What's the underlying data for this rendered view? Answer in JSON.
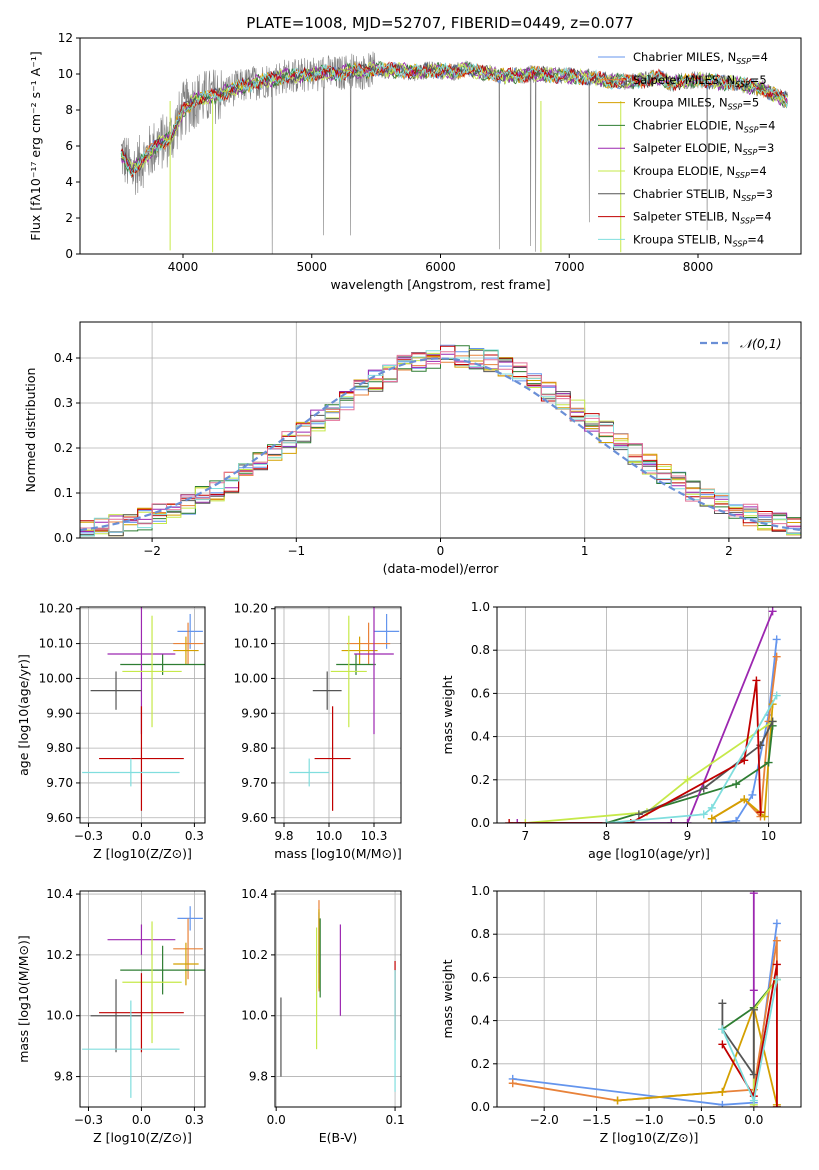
{
  "figure_title": "PLATE=1008, MJD=52707, FIBERID=0449, z=0.077",
  "colors": {
    "Chabrier MILES": "#6495ed",
    "Salpeter MILES": "#e8823a",
    "Kroupa MILES": "#d4a000",
    "Chabrier ELODIE": "#2e7d32",
    "Salpeter ELODIE": "#9c27b0",
    "Kroupa ELODIE": "#c6e94a",
    "Chabrier STELIB": "#555555",
    "Salpeter STELIB": "#c00000",
    "Kroupa STELIB": "#80dede",
    "gauss": "#6a8fd6",
    "data": "#808080"
  },
  "chart_data": [
    {
      "id": "spectrum",
      "type": "line",
      "title": "PLATE=1008, MJD=52707, FIBERID=0449, z=0.077",
      "xlabel": "wavelength [Angstrom, rest frame]",
      "ylabel": "Flux [fλ10⁻¹⁷ erg cm⁻² s⁻¹ A⁻¹]",
      "xlim": [
        3200,
        8800
      ],
      "ylim": [
        0,
        12
      ],
      "xticks": [
        4000,
        5000,
        6000,
        7000,
        8000
      ],
      "yticks": [
        0,
        2,
        4,
        6,
        8,
        10,
        12
      ],
      "legend_position": "right",
      "legend": [
        {
          "key": "Chabrier MILES",
          "name": "Chabrier MILES",
          "nssp": "4"
        },
        {
          "key": "Salpeter MILES",
          "name": "Salpeter MILES",
          "nssp": "5"
        },
        {
          "key": "Kroupa MILES",
          "name": "Kroupa MILES",
          "nssp": "5"
        },
        {
          "key": "Chabrier ELODIE",
          "name": "Chabrier ELODIE",
          "nssp": "4"
        },
        {
          "key": "Salpeter ELODIE",
          "name": "Salpeter ELODIE",
          "nssp": "3"
        },
        {
          "key": "Kroupa ELODIE",
          "name": "Kroupa ELODIE",
          "nssp": "4"
        },
        {
          "key": "Chabrier STELIB",
          "name": "Chabrier STELIB",
          "nssp": "3"
        },
        {
          "key": "Salpeter STELIB",
          "name": "Salpeter STELIB",
          "nssp": "4"
        },
        {
          "key": "Kroupa STELIB",
          "name": "Kroupa STELIB",
          "nssp": "4"
        }
      ],
      "model_continuum": [
        [
          3520,
          5.6
        ],
        [
          3600,
          4.6
        ],
        [
          3700,
          5.3
        ],
        [
          3800,
          6.1
        ],
        [
          3900,
          6.4
        ],
        [
          4000,
          8.0
        ],
        [
          4100,
          8.6
        ],
        [
          4200,
          8.7
        ],
        [
          4300,
          8.9
        ],
        [
          4400,
          9.2
        ],
        [
          4500,
          9.4
        ],
        [
          4600,
          9.6
        ],
        [
          4700,
          9.7
        ],
        [
          4800,
          9.9
        ],
        [
          4900,
          9.9
        ],
        [
          5000,
          10.0
        ],
        [
          5100,
          10.1
        ],
        [
          5200,
          10.0
        ],
        [
          5300,
          10.2
        ],
        [
          5400,
          10.1
        ],
        [
          5500,
          10.3
        ],
        [
          5600,
          10.2
        ],
        [
          5700,
          10.2
        ],
        [
          5800,
          10.1
        ],
        [
          5900,
          10.2
        ],
        [
          6000,
          10.2
        ],
        [
          6100,
          10.1
        ],
        [
          6200,
          10.3
        ],
        [
          6300,
          10.1
        ],
        [
          6400,
          10.0
        ],
        [
          6500,
          9.9
        ],
        [
          6600,
          9.9
        ],
        [
          6700,
          10.0
        ],
        [
          6800,
          10.0
        ],
        [
          6900,
          9.9
        ],
        [
          7000,
          9.9
        ],
        [
          7100,
          9.8
        ],
        [
          7200,
          9.8
        ],
        [
          7300,
          9.6
        ],
        [
          7400,
          9.6
        ],
        [
          7500,
          9.6
        ],
        [
          7600,
          9.7
        ],
        [
          7700,
          9.8
        ],
        [
          7800,
          9.5
        ],
        [
          7900,
          9.6
        ],
        [
          8000,
          9.7
        ],
        [
          8100,
          9.6
        ],
        [
          8200,
          9.5
        ],
        [
          8300,
          9.5
        ],
        [
          8400,
          9.3
        ],
        [
          8500,
          9.2
        ],
        [
          8600,
          8.8
        ],
        [
          8700,
          8.5
        ]
      ]
    },
    {
      "id": "residuals",
      "type": "histogram",
      "xlabel": "(data-model)/error",
      "ylabel": "Normed distribution",
      "xlim": [
        -2.5,
        2.5
      ],
      "ylim": [
        0,
        0.48
      ],
      "xticks": [
        -2,
        -1,
        0,
        1,
        2
      ],
      "yticks": [
        0.0,
        0.1,
        0.2,
        0.3,
        0.4
      ],
      "legend_label": "𝒩(0,1)",
      "legend_position": "top-right",
      "bin_width": 0.1,
      "bin_start": -2.5
    },
    {
      "id": "age_vs_Z",
      "type": "errorbar",
      "xlabel": "Z [log10(Z/Z⊙)]",
      "ylabel": "age  [log10(age/yr)]",
      "xlim": [
        -0.29,
        0.3
      ],
      "ylim": [
        9.585,
        10.205
      ],
      "xticks": [
        -0.25,
        0.0,
        0.25
      ],
      "yticks": [
        9.6,
        9.7,
        9.8,
        9.9,
        10.0,
        10.1,
        10.2
      ],
      "points": [
        {
          "key": "Chabrier MILES",
          "x": 0.23,
          "xerr": 0.06,
          "y": 10.135,
          "yerr": 0.05
        },
        {
          "key": "Salpeter MILES",
          "x": 0.22,
          "xerr": 0.07,
          "y": 10.1,
          "yerr": 0.06
        },
        {
          "key": "Kroupa MILES",
          "x": 0.21,
          "xerr": 0.06,
          "y": 10.08,
          "yerr": 0.04
        },
        {
          "key": "Chabrier ELODIE",
          "x": 0.1,
          "xerr": 0.2,
          "y": 10.04,
          "yerr": 0.03
        },
        {
          "key": "Salpeter ELODIE",
          "x": 0.0,
          "xerr": 0.16,
          "y": 10.07,
          "yerr": 0.23
        },
        {
          "key": "Kroupa ELODIE",
          "x": 0.05,
          "xerr": 0.14,
          "y": 10.02,
          "yerr": 0.16
        },
        {
          "key": "Chabrier STELIB",
          "x": -0.12,
          "xerr": 0.12,
          "y": 9.965,
          "yerr": 0.055
        },
        {
          "key": "Salpeter STELIB",
          "x": 0.0,
          "xerr": 0.2,
          "y": 9.77,
          "yerr": 0.15
        },
        {
          "key": "Kroupa STELIB",
          "x": -0.05,
          "xerr": 0.23,
          "y": 9.73,
          "yerr": 0.04
        }
      ]
    },
    {
      "id": "age_vs_mass",
      "type": "errorbar",
      "xlabel": "mass [log10(M/M⊙)]",
      "ylabel": "",
      "xlim": [
        9.7,
        10.4
      ],
      "ylim": [
        9.585,
        10.205
      ],
      "xticks": [
        9.75,
        10.0,
        10.25
      ],
      "yticks": [
        9.6,
        9.7,
        9.8,
        9.9,
        10.0,
        10.1,
        10.2
      ],
      "points": [
        {
          "key": "Chabrier MILES",
          "x": 10.32,
          "xerr": 0.07,
          "y": 10.135,
          "yerr": 0.05
        },
        {
          "key": "Salpeter MILES",
          "x": 10.22,
          "xerr": 0.12,
          "y": 10.1,
          "yerr": 0.06
        },
        {
          "key": "Kroupa MILES",
          "x": 10.17,
          "xerr": 0.1,
          "y": 10.08,
          "yerr": 0.04
        },
        {
          "key": "Chabrier ELODIE",
          "x": 10.15,
          "xerr": 0.11,
          "y": 10.04,
          "yerr": 0.03
        },
        {
          "key": "Salpeter ELODIE",
          "x": 10.25,
          "xerr": 0.11,
          "y": 10.07,
          "yerr": 0.23
        },
        {
          "key": "Kroupa ELODIE",
          "x": 10.11,
          "xerr": 0.1,
          "y": 10.02,
          "yerr": 0.16
        },
        {
          "key": "Chabrier STELIB",
          "x": 9.99,
          "xerr": 0.08,
          "y": 9.965,
          "yerr": 0.055
        },
        {
          "key": "Salpeter STELIB",
          "x": 10.02,
          "xerr": 0.1,
          "y": 9.77,
          "yerr": 0.15
        },
        {
          "key": "Kroupa STELIB",
          "x": 9.89,
          "xerr": 0.11,
          "y": 9.73,
          "yerr": 0.04
        }
      ]
    },
    {
      "id": "mass_weight_vs_age",
      "type": "line",
      "xlabel": "age  [log10(age/yr)]",
      "ylabel": "mass weight",
      "xlim": [
        6.65,
        10.4
      ],
      "ylim": [
        0.0,
        1.0
      ],
      "xticks": [
        7,
        8,
        9,
        10
      ],
      "yticks": [
        0.0,
        0.2,
        0.4,
        0.6,
        0.8,
        1.0
      ],
      "series": [
        {
          "key": "Chabrier MILES",
          "x": [
            9.35,
            9.6,
            9.8,
            10.0,
            10.1
          ],
          "y": [
            0.0,
            0.01,
            0.13,
            0.5,
            0.85
          ]
        },
        {
          "key": "Salpeter MILES",
          "x": [
            9.3,
            9.7,
            9.9,
            10.0,
            10.1
          ],
          "y": [
            0.02,
            0.11,
            0.03,
            0.47,
            0.77
          ]
        },
        {
          "key": "Kroupa MILES",
          "x": [
            9.3,
            9.7,
            9.95,
            10.05
          ],
          "y": [
            0.02,
            0.11,
            0.03,
            0.55
          ]
        },
        {
          "key": "Chabrier ELODIE",
          "x": [
            8.0,
            9.6,
            10.0,
            10.05
          ],
          "y": [
            0.0,
            0.18,
            0.28,
            0.45
          ]
        },
        {
          "key": "Salpeter ELODIE",
          "x": [
            6.9,
            8.8,
            9.0,
            10.05
          ],
          "y": [
            0.0,
            0.0,
            0.0,
            0.98
          ]
        },
        {
          "key": "Kroupa ELODIE",
          "x": [
            7.0,
            8.5,
            9.0,
            10.05
          ],
          "y": [
            0.0,
            0.05,
            0.2,
            0.47
          ]
        },
        {
          "key": "Chabrier STELIB",
          "x": [
            8.4,
            9.2,
            9.9,
            10.05
          ],
          "y": [
            0.04,
            0.16,
            0.36,
            0.47
          ]
        },
        {
          "key": "Salpeter STELIB",
          "x": [
            6.8,
            8.3,
            9.7,
            9.85,
            9.9
          ],
          "y": [
            0.0,
            0.0,
            0.29,
            0.66,
            0.05
          ]
        },
        {
          "key": "Kroupa STELIB",
          "x": [
            8.0,
            9.2,
            9.3,
            10.1
          ],
          "y": [
            0.0,
            0.04,
            0.07,
            0.59
          ]
        }
      ]
    },
    {
      "id": "mass_vs_Z",
      "type": "errorbar",
      "xlabel": "Z [log10(Z/Z⊙)]",
      "ylabel": "mass [log10(M/M⊙)]",
      "xlim": [
        -0.29,
        0.3
      ],
      "ylim": [
        9.7,
        10.41
      ],
      "xticks": [
        -0.25,
        0.0,
        0.25
      ],
      "yticks": [
        9.8,
        10.0,
        10.2,
        10.4
      ],
      "points": [
        {
          "key": "Chabrier MILES",
          "x": 0.23,
          "xerr": 0.06,
          "y": 10.32,
          "yerr": 0.04
        },
        {
          "key": "Salpeter MILES",
          "x": 0.22,
          "xerr": 0.07,
          "y": 10.22,
          "yerr": 0.1
        },
        {
          "key": "Kroupa MILES",
          "x": 0.21,
          "xerr": 0.06,
          "y": 10.17,
          "yerr": 0.07
        },
        {
          "key": "Chabrier ELODIE",
          "x": 0.1,
          "xerr": 0.2,
          "y": 10.15,
          "yerr": 0.08
        },
        {
          "key": "Salpeter ELODIE",
          "x": 0.0,
          "xerr": 0.16,
          "y": 10.25,
          "yerr": 0.05
        },
        {
          "key": "Kroupa ELODIE",
          "x": 0.05,
          "xerr": 0.14,
          "y": 10.11,
          "yerr": 0.2
        },
        {
          "key": "Chabrier STELIB",
          "x": -0.12,
          "xerr": 0.12,
          "y": 10.0,
          "yerr": 0.12
        },
        {
          "key": "Salpeter STELIB",
          "x": 0.0,
          "xerr": 0.2,
          "y": 10.01,
          "yerr": 0.13
        },
        {
          "key": "Kroupa STELIB",
          "x": -0.05,
          "xerr": 0.23,
          "y": 9.89,
          "yerr": 0.16
        }
      ]
    },
    {
      "id": "mass_vs_ebv",
      "type": "errorbar",
      "xlabel": "E(B-V)",
      "ylabel": "",
      "xlim": [
        -0.001,
        0.105
      ],
      "ylim": [
        9.7,
        10.41
      ],
      "xticks": [
        0.0,
        0.1
      ],
      "yticks": [
        9.8,
        10.0,
        10.2,
        10.4
      ],
      "points": [
        {
          "key": "Chabrier MILES",
          "x": 0.036,
          "xerr": 0.0,
          "y": 10.24,
          "yerr": 0.1
        },
        {
          "key": "Salpeter MILES",
          "x": 0.036,
          "xerr": 0.0,
          "y": 10.23,
          "yerr": 0.15
        },
        {
          "key": "Kroupa MILES",
          "x": 0.036,
          "xerr": 0.0,
          "y": 10.22,
          "yerr": 0.13
        },
        {
          "key": "Chabrier ELODIE",
          "x": 0.037,
          "xerr": 0.0,
          "y": 10.19,
          "yerr": 0.13
        },
        {
          "key": "Salpeter ELODIE",
          "x": 0.054,
          "xerr": 0.0,
          "y": 10.15,
          "yerr": 0.15
        },
        {
          "key": "Kroupa ELODIE",
          "x": 0.034,
          "xerr": 0.0,
          "y": 10.09,
          "yerr": 0.2
        },
        {
          "key": "Chabrier STELIB",
          "x": 0.004,
          "xerr": 0.0,
          "y": 9.93,
          "yerr": 0.13
        },
        {
          "key": "Salpeter STELIB",
          "x": 0.1,
          "xerr": 0.0,
          "y": 10.05,
          "yerr": 0.13
        },
        {
          "key": "Kroupa STELIB",
          "x": 0.1,
          "xerr": 0.0,
          "y": 9.95,
          "yerr": 0.2
        }
      ]
    },
    {
      "id": "mass_weight_vs_Z",
      "type": "line",
      "xlabel": "Z [log10(Z/Z⊙)]",
      "ylabel": "mass weight",
      "xlim": [
        -2.45,
        0.45
      ],
      "ylim": [
        0.0,
        1.0
      ],
      "xticks": [
        -2.0,
        -1.5,
        -1.0,
        -0.5,
        0.0
      ],
      "yticks": [
        0.0,
        0.2,
        0.4,
        0.6,
        0.8,
        1.0
      ],
      "series": [
        {
          "key": "Chabrier MILES",
          "x": [
            -2.3,
            -0.3,
            0.0,
            0.22
          ],
          "y": [
            0.13,
            0.01,
            0.02,
            0.85
          ]
        },
        {
          "key": "Salpeter MILES",
          "x": [
            -2.3,
            -1.3,
            -0.3,
            0.0,
            0.22,
            0.22
          ],
          "y": [
            0.11,
            0.03,
            0.07,
            0.08,
            0.77,
            0.0
          ]
        },
        {
          "key": "Kroupa MILES",
          "x": [
            -1.3,
            -0.3,
            0.0,
            0.22
          ],
          "y": [
            0.03,
            0.07,
            0.46,
            0.01
          ]
        },
        {
          "key": "Chabrier ELODIE",
          "x": [
            -0.3,
            0.0,
            0.22
          ],
          "y": [
            0.36,
            0.46,
            0.59
          ]
        },
        {
          "key": "Salpeter ELODIE",
          "x": [
            0.0,
            0.0,
            0.0
          ],
          "y": [
            0.0,
            0.54,
            0.99
          ]
        },
        {
          "key": "Kroupa ELODIE",
          "x": [
            0.0,
            0.0,
            0.22
          ],
          "y": [
            0.01,
            0.45,
            0.59
          ]
        },
        {
          "key": "Chabrier STELIB",
          "x": [
            -0.3,
            -0.3,
            0.0,
            0.0
          ],
          "y": [
            0.48,
            0.36,
            0.15,
            0.45
          ]
        },
        {
          "key": "Salpeter STELIB",
          "x": [
            -0.3,
            0.0,
            0.22,
            0.22
          ],
          "y": [
            0.29,
            0.05,
            0.66,
            0.0
          ]
        },
        {
          "key": "Kroupa STELIB",
          "x": [
            -0.3,
            0.0,
            0.22
          ],
          "y": [
            0.36,
            0.03,
            0.59
          ]
        }
      ]
    }
  ]
}
